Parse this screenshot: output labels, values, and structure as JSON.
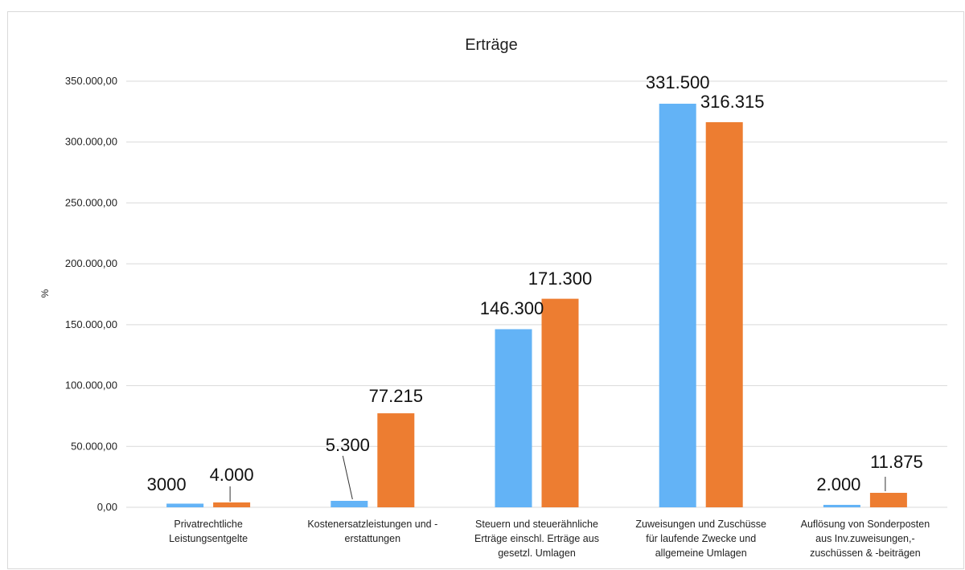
{
  "chart_data": {
    "type": "bar",
    "title": "Erträge",
    "ylabel": "%",
    "ylim": [
      0,
      350000
    ],
    "yticks": [
      "0,00",
      "50.000,00",
      "100.000,00",
      "150.000,00",
      "200.000,00",
      "250.000,00",
      "300.000,00",
      "350.000,00"
    ],
    "grid": true,
    "categories": [
      [
        "Privatrechtliche",
        "Leistungsentgelte"
      ],
      [
        "Kostenersatzleistungen und -",
        "erstattungen"
      ],
      [
        "Steuern und steuerähnliche",
        "Erträge einschl. Erträge aus",
        "gesetzl. Umlagen"
      ],
      [
        "Zuweisungen und Zuschüsse",
        "für laufende Zwecke und",
        "allgemeine Umlagen"
      ],
      [
        "Auflösung von Sonderposten",
        "aus Inv.zuweisungen,-",
        "zuschüssen & -beiträgen"
      ]
    ],
    "series": [
      {
        "color": "#63b3f6",
        "values": [
          3000,
          5300,
          146300,
          331500,
          2000
        ],
        "labels": [
          "3000",
          "5.300",
          "146.300",
          "331.500",
          "2.000"
        ]
      },
      {
        "color": "#ed7d31",
        "values": [
          4000,
          77215,
          171300,
          316315,
          11875
        ],
        "labels": [
          "4.000",
          "77.215",
          "171.300",
          "316.315",
          "11.875"
        ]
      }
    ]
  }
}
